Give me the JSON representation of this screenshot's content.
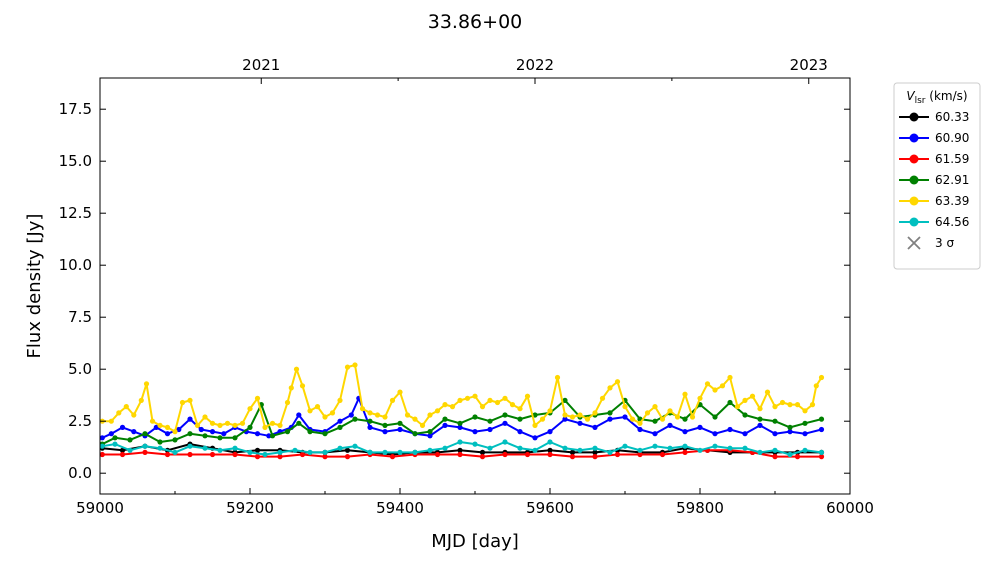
{
  "chart_data": {
    "type": "line",
    "title": "33.86+00",
    "xlabel": "MJD [day]",
    "ylabel": "Flux density [Jy]",
    "xlim": [
      59000,
      60000
    ],
    "ylim": [
      -1.0,
      19.0
    ],
    "x_ticks": [
      "59000",
      "59200",
      "59400",
      "59600",
      "59800",
      "60000"
    ],
    "y_ticks": [
      "0.0",
      "2.5",
      "5.0",
      "7.5",
      "10.0",
      "12.5",
      "15.0",
      "17.5"
    ],
    "top_axis": {
      "ticks": [
        {
          "label": "2021",
          "mjd": 59215
        },
        {
          "label": "2022",
          "mjd": 59580
        },
        {
          "label": "2023",
          "mjd": 59945
        }
      ]
    },
    "legend": {
      "title_main": "V",
      "title_sub": "lsr",
      "title_unit": " (km/s)",
      "placement": "outside-right",
      "entries": [
        {
          "label": "60.33",
          "color": "#000000"
        },
        {
          "label": "60.90",
          "color": "#0000ff"
        },
        {
          "label": "61.59",
          "color": "#ff0000"
        },
        {
          "label": "62.91",
          "color": "#008000"
        },
        {
          "label": "63.39",
          "color": "#ffd700"
        },
        {
          "label": "64.56",
          "color": "#00bfbf"
        }
      ],
      "sigma_label": "3 σ",
      "sigma_color": "#808080"
    },
    "series": [
      {
        "name": "60.33",
        "color": "#000000",
        "x": [
          59003,
          59030,
          59060,
          59090,
          59120,
          59150,
          59180,
          59210,
          59240,
          59270,
          59300,
          59330,
          59360,
          59390,
          59420,
          59450,
          59480,
          59510,
          59540,
          59570,
          59600,
          59630,
          59660,
          59690,
          59720,
          59750,
          59780,
          59810,
          59840,
          59870,
          59900,
          59930,
          59962
        ],
        "y": [
          1.2,
          1.1,
          1.3,
          1.1,
          1.4,
          1.2,
          1.0,
          1.1,
          1.1,
          1.0,
          1.0,
          1.1,
          1.0,
          0.9,
          1.0,
          1.0,
          1.1,
          1.0,
          1.0,
          1.0,
          1.1,
          1.0,
          1.0,
          1.1,
          1.0,
          1.0,
          1.2,
          1.1,
          1.0,
          1.0,
          1.0,
          1.0,
          1.0
        ]
      },
      {
        "name": "60.90",
        "color": "#0000ff",
        "x": [
          59003,
          59015,
          59030,
          59045,
          59060,
          59075,
          59090,
          59105,
          59120,
          59135,
          59150,
          59165,
          59180,
          59195,
          59210,
          59225,
          59240,
          59255,
          59265,
          59280,
          59300,
          59320,
          59335,
          59345,
          59360,
          59380,
          59400,
          59420,
          59440,
          59460,
          59480,
          59500,
          59520,
          59540,
          59560,
          59580,
          59600,
          59620,
          59640,
          59660,
          59680,
          59700,
          59720,
          59740,
          59760,
          59780,
          59800,
          59820,
          59840,
          59860,
          59880,
          59900,
          59920,
          59940,
          59962
        ],
        "y": [
          1.7,
          1.9,
          2.2,
          2.0,
          1.8,
          2.2,
          1.9,
          2.1,
          2.6,
          2.1,
          2.0,
          1.9,
          2.2,
          2.0,
          1.9,
          1.8,
          2.0,
          2.2,
          2.8,
          2.1,
          2.0,
          2.5,
          2.8,
          3.6,
          2.2,
          2.0,
          2.1,
          1.9,
          1.8,
          2.3,
          2.2,
          2.0,
          2.1,
          2.4,
          2.0,
          1.7,
          2.0,
          2.6,
          2.4,
          2.2,
          2.6,
          2.7,
          2.1,
          1.9,
          2.3,
          2.0,
          2.2,
          1.9,
          2.1,
          1.9,
          2.3,
          1.9,
          2.0,
          1.9,
          2.1
        ]
      },
      {
        "name": "61.59",
        "color": "#ff0000",
        "x": [
          59003,
          59030,
          59060,
          59090,
          59120,
          59150,
          59180,
          59210,
          59240,
          59270,
          59300,
          59330,
          59360,
          59390,
          59420,
          59450,
          59480,
          59510,
          59540,
          59570,
          59600,
          59630,
          59660,
          59690,
          59720,
          59750,
          59780,
          59810,
          59840,
          59870,
          59900,
          59930,
          59962
        ],
        "y": [
          0.9,
          0.9,
          1.0,
          0.9,
          0.9,
          0.9,
          0.9,
          0.8,
          0.8,
          0.9,
          0.8,
          0.8,
          0.9,
          0.8,
          0.9,
          0.9,
          0.9,
          0.8,
          0.9,
          0.9,
          0.9,
          0.8,
          0.8,
          0.9,
          0.9,
          0.9,
          1.0,
          1.1,
          1.1,
          1.0,
          0.8,
          0.8,
          0.8
        ]
      },
      {
        "name": "62.91",
        "color": "#008000",
        "x": [
          59003,
          59020,
          59040,
          59060,
          59080,
          59100,
          59120,
          59140,
          59160,
          59180,
          59200,
          59215,
          59230,
          59250,
          59265,
          59280,
          59300,
          59320,
          59340,
          59360,
          59380,
          59400,
          59420,
          59440,
          59460,
          59480,
          59500,
          59520,
          59540,
          59560,
          59580,
          59600,
          59620,
          59640,
          59660,
          59680,
          59700,
          59720,
          59740,
          59760,
          59780,
          59800,
          59820,
          59840,
          59860,
          59880,
          59900,
          59920,
          59940,
          59962
        ],
        "y": [
          1.4,
          1.7,
          1.6,
          1.9,
          1.5,
          1.6,
          1.9,
          1.8,
          1.7,
          1.7,
          2.2,
          3.3,
          1.8,
          2.0,
          2.4,
          2.0,
          1.9,
          2.2,
          2.6,
          2.5,
          2.3,
          2.4,
          1.9,
          2.0,
          2.6,
          2.4,
          2.7,
          2.5,
          2.8,
          2.6,
          2.8,
          2.9,
          3.5,
          2.7,
          2.8,
          2.9,
          3.5,
          2.6,
          2.5,
          2.9,
          2.6,
          3.3,
          2.7,
          3.4,
          2.8,
          2.6,
          2.5,
          2.2,
          2.4,
          2.6
        ]
      },
      {
        "name": "63.39",
        "color": "#ffd700",
        "x": [
          59003,
          59015,
          59025,
          59035,
          59045,
          59055,
          59062,
          59070,
          59080,
          59090,
          59100,
          59110,
          59120,
          59130,
          59140,
          59150,
          59160,
          59170,
          59180,
          59190,
          59200,
          59210,
          59220,
          59230,
          59240,
          59250,
          59255,
          59262,
          59270,
          59280,
          59290,
          59300,
          59310,
          59320,
          59330,
          59340,
          59350,
          59360,
          59370,
          59380,
          59390,
          59400,
          59410,
          59420,
          59430,
          59440,
          59450,
          59460,
          59470,
          59480,
          59490,
          59500,
          59510,
          59520,
          59530,
          59540,
          59550,
          59560,
          59570,
          59580,
          59590,
          59600,
          59610,
          59620,
          59630,
          59640,
          59650,
          59660,
          59670,
          59680,
          59690,
          59700,
          59710,
          59720,
          59730,
          59740,
          59750,
          59760,
          59770,
          59780,
          59790,
          59800,
          59810,
          59820,
          59830,
          59840,
          59850,
          59860,
          59870,
          59880,
          59890,
          59900,
          59910,
          59920,
          59930,
          59940,
          59950,
          59955,
          59962
        ],
        "y": [
          2.5,
          2.5,
          2.9,
          3.2,
          2.8,
          3.5,
          4.3,
          2.5,
          2.3,
          2.2,
          2.0,
          3.4,
          3.5,
          2.3,
          2.7,
          2.4,
          2.3,
          2.4,
          2.3,
          2.4,
          3.1,
          3.6,
          2.2,
          2.4,
          2.3,
          3.4,
          4.1,
          5.0,
          4.2,
          3.0,
          3.2,
          2.7,
          2.9,
          3.5,
          5.1,
          5.2,
          3.1,
          2.9,
          2.8,
          2.7,
          3.5,
          3.9,
          2.8,
          2.6,
          2.3,
          2.8,
          3.0,
          3.3,
          3.2,
          3.5,
          3.6,
          3.7,
          3.2,
          3.5,
          3.4,
          3.6,
          3.3,
          3.1,
          3.7,
          2.3,
          2.6,
          3.0,
          4.6,
          2.8,
          2.7,
          2.8,
          2.6,
          2.9,
          3.6,
          4.1,
          4.4,
          3.2,
          2.6,
          2.4,
          2.9,
          3.2,
          2.6,
          3.0,
          2.7,
          3.8,
          2.7,
          3.6,
          4.3,
          4.0,
          4.2,
          4.6,
          3.2,
          3.5,
          3.7,
          3.1,
          3.9,
          3.2,
          3.4,
          3.3,
          3.3,
          3.0,
          3.3,
          4.2,
          4.6
        ]
      },
      {
        "name": "64.56",
        "color": "#00bfbf",
        "x": [
          59003,
          59020,
          59040,
          59060,
          59080,
          59100,
          59120,
          59140,
          59160,
          59180,
          59200,
          59220,
          59240,
          59260,
          59280,
          59300,
          59320,
          59340,
          59360,
          59380,
          59400,
          59420,
          59440,
          59460,
          59480,
          59500,
          59520,
          59540,
          59560,
          59580,
          59600,
          59620,
          59640,
          59660,
          59680,
          59700,
          59720,
          59740,
          59760,
          59780,
          59800,
          59820,
          59840,
          59860,
          59880,
          59900,
          59920,
          59940,
          59962
        ],
        "y": [
          1.3,
          1.4,
          1.1,
          1.3,
          1.2,
          1.0,
          1.3,
          1.2,
          1.1,
          1.2,
          1.0,
          0.9,
          1.0,
          1.1,
          1.0,
          1.0,
          1.2,
          1.3,
          1.0,
          1.0,
          1.0,
          1.0,
          1.1,
          1.2,
          1.5,
          1.4,
          1.2,
          1.5,
          1.2,
          1.1,
          1.5,
          1.2,
          1.1,
          1.2,
          1.0,
          1.3,
          1.1,
          1.3,
          1.2,
          1.3,
          1.1,
          1.3,
          1.2,
          1.2,
          1.0,
          1.1,
          0.9,
          1.1,
          1.0
        ]
      }
    ]
  }
}
